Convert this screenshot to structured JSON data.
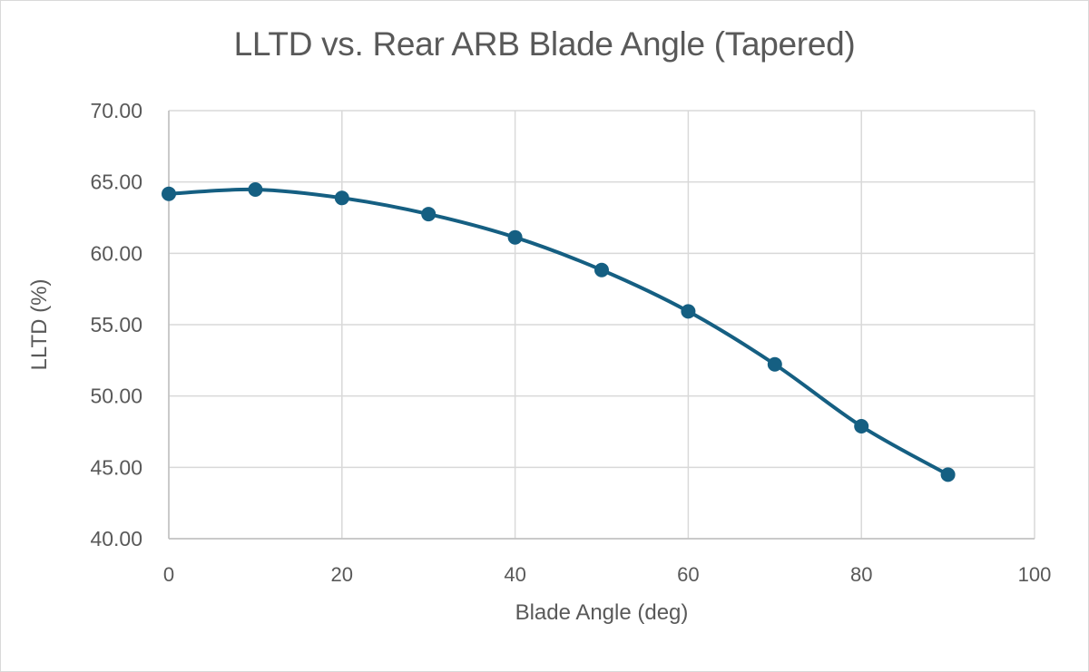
{
  "chart_data": {
    "type": "line",
    "title": "LLTD vs. Rear ARB Blade Angle (Tapered)",
    "xlabel": "Blade Angle (deg)",
    "ylabel": "LLTD (%)",
    "x": [
      0,
      10,
      20,
      30,
      40,
      50,
      60,
      70,
      80,
      90
    ],
    "series": [
      {
        "name": "LLTD",
        "values": [
          64.17,
          64.47,
          63.88,
          62.75,
          61.12,
          58.83,
          55.93,
          52.22,
          47.88,
          44.49
        ],
        "color": "#155F82",
        "smooth": true,
        "markers": true
      }
    ],
    "xlim": [
      0,
      100
    ],
    "ylim": [
      40,
      70
    ],
    "x_ticks": [
      "0",
      "20",
      "40",
      "60",
      "80",
      "100"
    ],
    "x_tick_values": [
      0,
      20,
      40,
      60,
      80,
      100
    ],
    "y_ticks": [
      "40.00",
      "45.00",
      "50.00",
      "55.00",
      "60.00",
      "65.00",
      "70.00"
    ],
    "y_tick_values": [
      40,
      45,
      50,
      55,
      60,
      65,
      70
    ],
    "grid": true,
    "legend": "none"
  },
  "colors": {
    "series": "#155F82",
    "grid": "#d9d9d9",
    "text": "#595959"
  }
}
